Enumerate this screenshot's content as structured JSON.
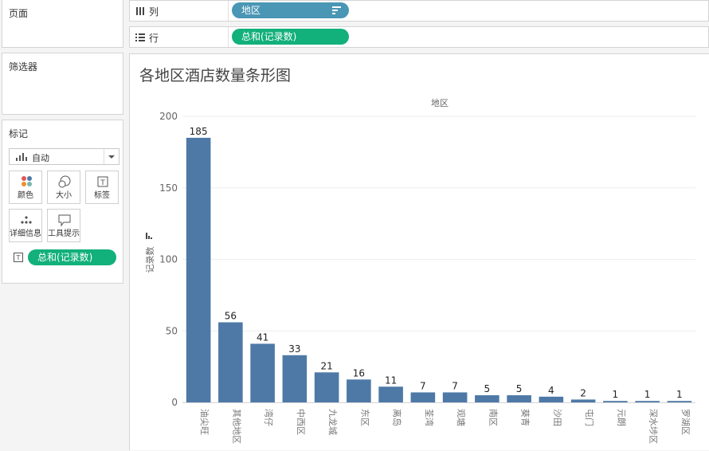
{
  "panes": {
    "pages_title": "页面",
    "filters_title": "筛选器",
    "marks_title": "标记",
    "mark_type": "自动",
    "mark_buttons": [
      "颜色",
      "大小",
      "标签",
      "详细信息",
      "工具提示"
    ],
    "marks_pill": "总和(记录数)"
  },
  "shelves": {
    "columns_label": "列",
    "columns_pill": "地区",
    "rows_label": "行",
    "rows_pill": "总和(记录数)"
  },
  "colors": {
    "bar": "#4e79a7",
    "green_pill": "#12b07a",
    "blue_pill": "#4a96b5"
  },
  "chart_data": {
    "type": "bar",
    "title": "各地区酒店数量条形图",
    "xlabel": "地区",
    "ylabel": "记录数",
    "ylim": [
      0,
      200
    ],
    "yticks": [
      0,
      50,
      100,
      150,
      200
    ],
    "categories": [
      "油尖旺",
      "其他地区",
      "湾仔",
      "中西区",
      "九龙城",
      "东区",
      "离岛",
      "荃湾",
      "观塘",
      "南区",
      "葵青",
      "沙田",
      "屯门",
      "元朗",
      "深水埗区",
      "罗湖区"
    ],
    "values": [
      185,
      56,
      41,
      33,
      21,
      16,
      11,
      7,
      7,
      5,
      5,
      4,
      2,
      1,
      1,
      1
    ],
    "grid": true
  }
}
